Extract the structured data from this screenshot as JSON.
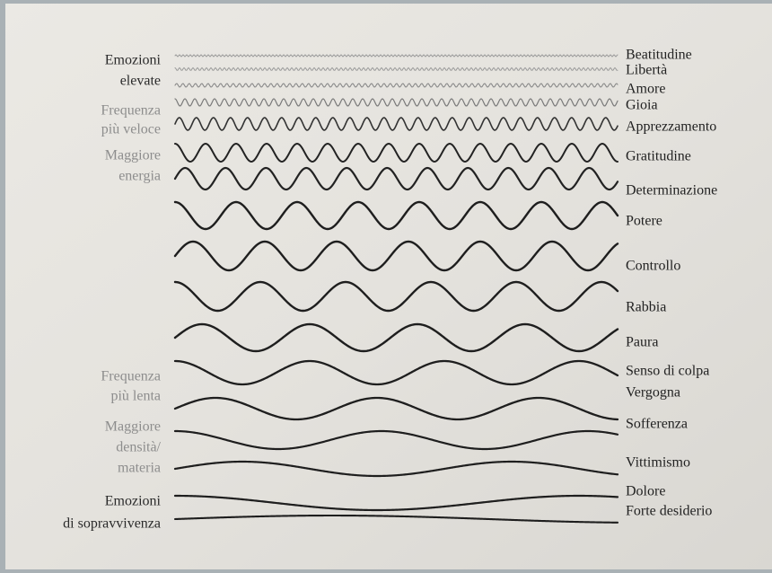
{
  "left_groups": [
    {
      "lines": [
        "Emozioni",
        "elevate"
      ]
    },
    {
      "lines": [
        "Frequenza",
        "più veloce"
      ]
    },
    {
      "lines": [
        "Maggiore",
        "energia"
      ]
    },
    {
      "lines": [
        "Frequenza",
        "più lenta"
      ]
    },
    {
      "lines": [
        "Maggiore",
        "densità/",
        "materia"
      ]
    },
    {
      "lines": [
        "Emozioni",
        "di sopravvivenza"
      ]
    }
  ],
  "emotions": [
    "Beatitudine",
    "Libertà",
    "Amore",
    "Gioia",
    "Apprezzamento",
    "Gratitudine",
    "Determinazione",
    "Potere",
    "Controllo",
    "Rabbia",
    "Paura",
    "Senso di colpa",
    "Vergogna",
    "Sofferenza",
    "Vittimismo",
    "Dolore",
    "Forte desiderio"
  ]
}
